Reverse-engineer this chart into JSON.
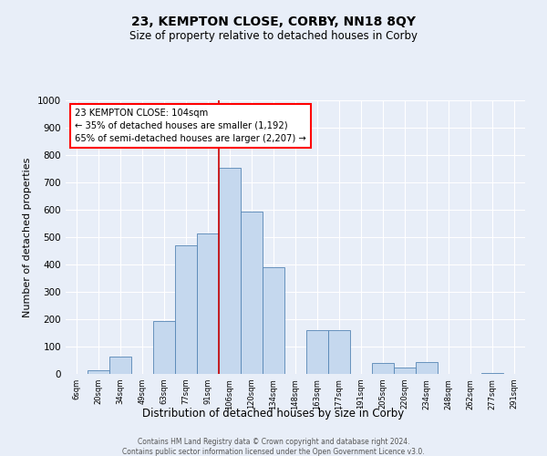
{
  "title": "23, KEMPTON CLOSE, CORBY, NN18 8QY",
  "subtitle": "Size of property relative to detached houses in Corby",
  "xlabel": "Distribution of detached houses by size in Corby",
  "ylabel": "Number of detached properties",
  "bin_labels": [
    "6sqm",
    "20sqm",
    "34sqm",
    "49sqm",
    "63sqm",
    "77sqm",
    "91sqm",
    "106sqm",
    "120sqm",
    "134sqm",
    "148sqm",
    "163sqm",
    "177sqm",
    "191sqm",
    "205sqm",
    "220sqm",
    "234sqm",
    "248sqm",
    "262sqm",
    "277sqm",
    "291sqm"
  ],
  "bar_values": [
    0,
    15,
    62,
    0,
    195,
    470,
    515,
    755,
    595,
    390,
    0,
    160,
    160,
    0,
    40,
    25,
    45,
    0,
    0,
    5,
    0
  ],
  "bar_color": "#c5d8ee",
  "bar_edge_color": "#5585b5",
  "vline_color": "#cc0000",
  "annotation_title": "23 KEMPTON CLOSE: 104sqm",
  "annotation_line1": "← 35% of detached houses are smaller (1,192)",
  "annotation_line2": "65% of semi-detached houses are larger (2,207) →",
  "ylim": [
    0,
    1000
  ],
  "yticks": [
    0,
    100,
    200,
    300,
    400,
    500,
    600,
    700,
    800,
    900,
    1000
  ],
  "footer1": "Contains HM Land Registry data © Crown copyright and database right 2024.",
  "footer2": "Contains public sector information licensed under the Open Government Licence v3.0.",
  "bg_color": "#e8eef8",
  "plot_bg_color": "#e8eef8",
  "title_fontsize": 10,
  "subtitle_fontsize": 8.5,
  "ylabel_fontsize": 8,
  "xlabel_fontsize": 8.5
}
